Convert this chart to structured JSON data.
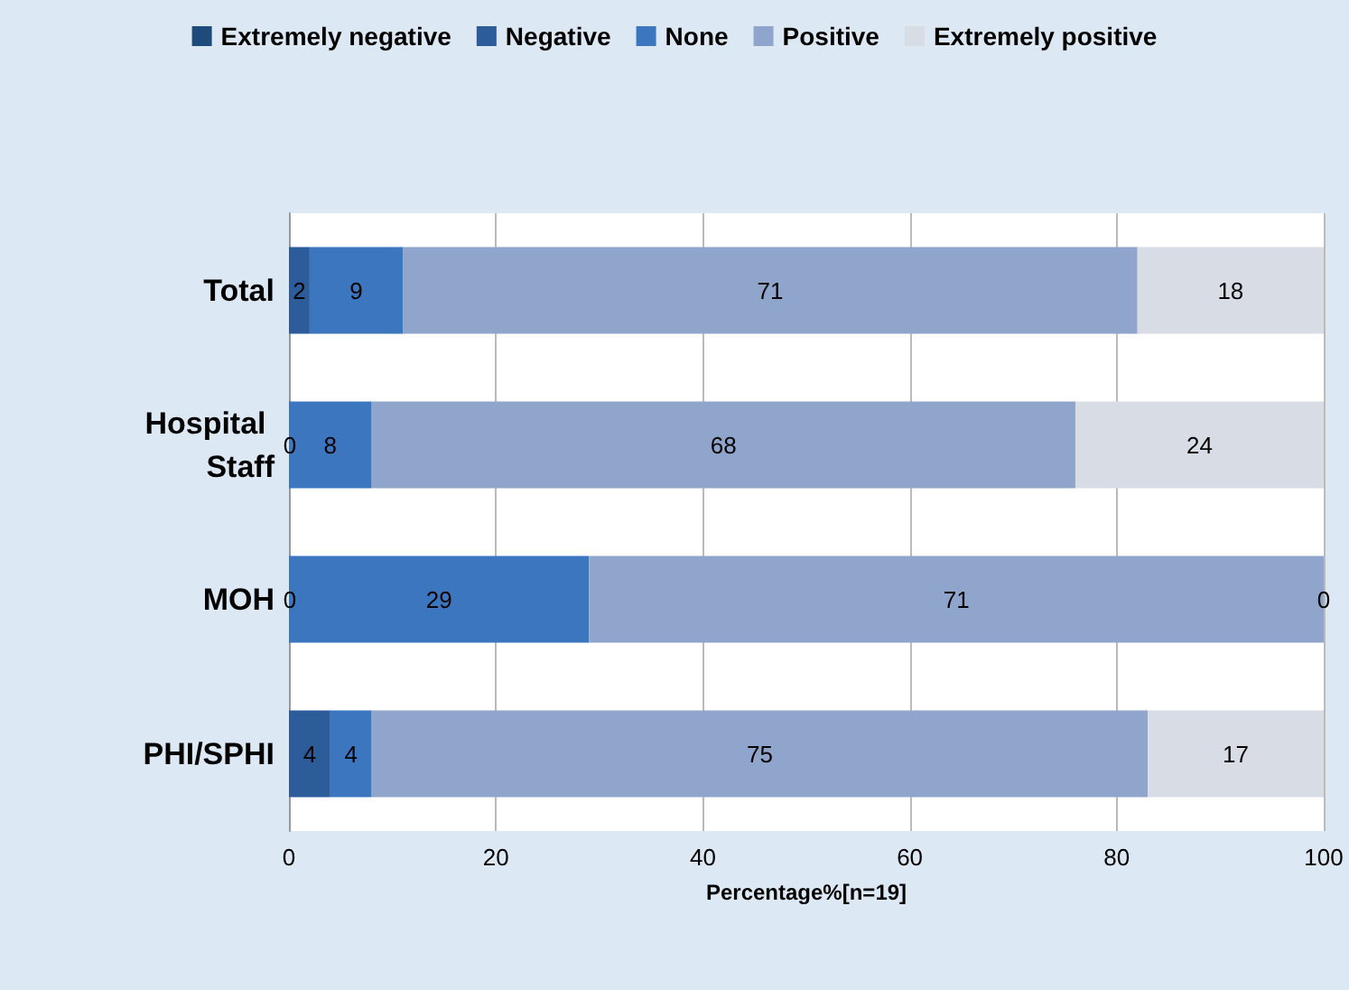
{
  "chart_data": {
    "type": "bar",
    "orientation": "horizontal",
    "stacked": true,
    "xlabel": "Percentage%[n=19]",
    "categories": [
      "Total",
      "Hospital Staff",
      "MOH",
      "PHI/SPHI"
    ],
    "series": [
      {
        "name": "Extremely negative",
        "color": "#1f4a7c",
        "values": [
          null,
          null,
          null,
          null
        ]
      },
      {
        "name": "Negative",
        "color": "#2c5d9a",
        "values": [
          2,
          0,
          0,
          4
        ],
        "value_labels": [
          "2",
          "0",
          "0",
          "4"
        ]
      },
      {
        "name": "None",
        "color": "#3b76bf",
        "values": [
          9,
          8,
          29,
          4
        ],
        "value_labels": [
          "9",
          "8",
          "29",
          "4"
        ]
      },
      {
        "name": "Positive",
        "color": "#8fa5cb",
        "values": [
          71,
          68,
          71,
          75
        ],
        "value_labels": [
          "71",
          "68",
          "71",
          "75"
        ]
      },
      {
        "name": "Extremely positive",
        "color": "#d8dce5",
        "values": [
          18,
          24,
          0,
          17
        ],
        "value_labels": [
          "18",
          "24",
          "0",
          "17"
        ]
      }
    ],
    "xlim": [
      0,
      100
    ],
    "xticks": [
      0,
      20,
      40,
      60,
      80,
      100
    ],
    "grid": "x",
    "legend": "top"
  }
}
